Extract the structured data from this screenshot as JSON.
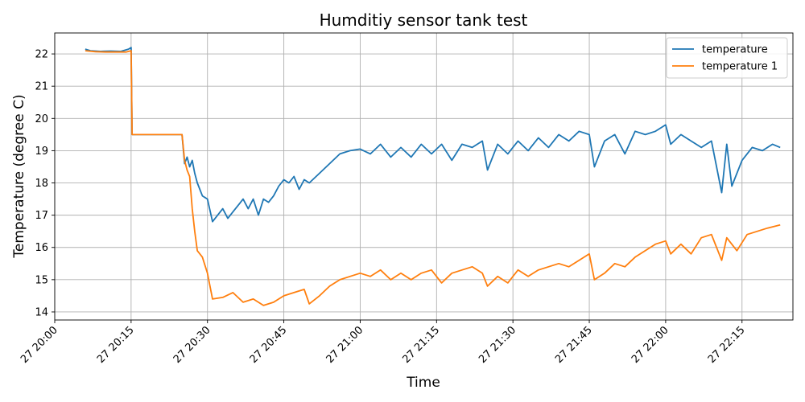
{
  "chart_data": {
    "type": "line",
    "title": "Humditiy sensor tank test",
    "xlabel": "Time",
    "ylabel": "Temperature (degree C)",
    "x_unit": "time (HH:MM)",
    "xlim": [
      "20:00",
      "22:25"
    ],
    "ylim": [
      13.75,
      22.65
    ],
    "x_ticks": [
      "20:00",
      "20:15",
      "20:30",
      "20:45",
      "21:00",
      "21:15",
      "21:30",
      "21:45",
      "22:00",
      "22:15"
    ],
    "x_tick_labels": [
      "27 20:00",
      "27 20:15",
      "27 20:30",
      "27 20:45",
      "27 21:00",
      "27 21:15",
      "27 21:30",
      "27 21:45",
      "27 22:00",
      "27 22:15"
    ],
    "y_ticks": [
      14,
      15,
      16,
      17,
      18,
      19,
      20,
      21,
      22
    ],
    "y_tick_labels": [
      "14",
      "15",
      "16",
      "17",
      "18",
      "19",
      "20",
      "21",
      "22"
    ],
    "grid": true,
    "legend_position": "top-right",
    "series": [
      {
        "name": "temperature",
        "color": "#1f77b4",
        "points": [
          [
            "20:06",
            22.15
          ],
          [
            "20:07",
            22.1
          ],
          [
            "20:09",
            22.08
          ],
          [
            "20:11",
            22.09
          ],
          [
            "20:13",
            22.08
          ],
          [
            "20:14.5",
            22.15
          ],
          [
            "20:15",
            22.2
          ],
          [
            "20:15.2",
            19.5
          ],
          [
            "20:18",
            19.5
          ],
          [
            "20:21",
            19.5
          ],
          [
            "20:24",
            19.5
          ],
          [
            "20:25",
            19.5
          ],
          [
            "20:25.5",
            18.6
          ],
          [
            "20:26",
            18.8
          ],
          [
            "20:26.5",
            18.5
          ],
          [
            "20:27",
            18.7
          ],
          [
            "20:27.5",
            18.3
          ],
          [
            "20:28",
            18.0
          ],
          [
            "20:29",
            17.6
          ],
          [
            "20:30",
            17.5
          ],
          [
            "20:31",
            16.8
          ],
          [
            "20:32",
            17.0
          ],
          [
            "20:33",
            17.2
          ],
          [
            "20:34",
            16.9
          ],
          [
            "20:35",
            17.1
          ],
          [
            "20:36",
            17.3
          ],
          [
            "20:37",
            17.5
          ],
          [
            "20:38",
            17.2
          ],
          [
            "20:39",
            17.5
          ],
          [
            "20:40",
            17.0
          ],
          [
            "20:41",
            17.5
          ],
          [
            "20:42",
            17.4
          ],
          [
            "20:43",
            17.6
          ],
          [
            "20:44",
            17.9
          ],
          [
            "20:45",
            18.1
          ],
          [
            "20:46",
            18.0
          ],
          [
            "20:47",
            18.2
          ],
          [
            "20:48",
            17.8
          ],
          [
            "20:49",
            18.1
          ],
          [
            "20:50",
            18.0
          ],
          [
            "20:52",
            18.3
          ],
          [
            "20:54",
            18.6
          ],
          [
            "20:56",
            18.9
          ],
          [
            "20:58",
            19.0
          ],
          [
            "21:00",
            19.05
          ],
          [
            "21:02",
            18.9
          ],
          [
            "21:04",
            19.2
          ],
          [
            "21:06",
            18.8
          ],
          [
            "21:08",
            19.1
          ],
          [
            "21:10",
            18.8
          ],
          [
            "21:12",
            19.2
          ],
          [
            "21:14",
            18.9
          ],
          [
            "21:16",
            19.2
          ],
          [
            "21:18",
            18.7
          ],
          [
            "21:20",
            19.2
          ],
          [
            "21:22",
            19.1
          ],
          [
            "21:24",
            19.3
          ],
          [
            "21:25",
            18.4
          ],
          [
            "21:27",
            19.2
          ],
          [
            "21:29",
            18.9
          ],
          [
            "21:31",
            19.3
          ],
          [
            "21:33",
            19.0
          ],
          [
            "21:35",
            19.4
          ],
          [
            "21:37",
            19.1
          ],
          [
            "21:39",
            19.5
          ],
          [
            "21:41",
            19.3
          ],
          [
            "21:43",
            19.6
          ],
          [
            "21:45",
            19.5
          ],
          [
            "21:46",
            18.5
          ],
          [
            "21:48",
            19.3
          ],
          [
            "21:50",
            19.5
          ],
          [
            "21:52",
            18.9
          ],
          [
            "21:54",
            19.6
          ],
          [
            "21:56",
            19.5
          ],
          [
            "21:58",
            19.6
          ],
          [
            "22:00",
            19.8
          ],
          [
            "22:01",
            19.2
          ],
          [
            "22:03",
            19.5
          ],
          [
            "22:05",
            19.3
          ],
          [
            "22:07",
            19.1
          ],
          [
            "22:09",
            19.3
          ],
          [
            "22:11",
            17.7
          ],
          [
            "22:12",
            19.2
          ],
          [
            "22:13",
            17.9
          ],
          [
            "22:15",
            18.7
          ],
          [
            "22:17",
            19.1
          ],
          [
            "22:19",
            19.0
          ],
          [
            "22:21",
            19.2
          ],
          [
            "22:22.5",
            19.1
          ]
        ]
      },
      {
        "name": "temperature 1",
        "color": "#ff7f0e",
        "points": [
          [
            "20:06",
            22.1
          ],
          [
            "20:08",
            22.07
          ],
          [
            "20:10",
            22.06
          ],
          [
            "20:12",
            22.06
          ],
          [
            "20:14",
            22.06
          ],
          [
            "20:15",
            22.1
          ],
          [
            "20:15.2",
            19.5
          ],
          [
            "20:18",
            19.5
          ],
          [
            "20:21",
            19.5
          ],
          [
            "20:24",
            19.5
          ],
          [
            "20:25",
            19.5
          ],
          [
            "20:25.5",
            18.7
          ],
          [
            "20:26",
            18.4
          ],
          [
            "20:26.5",
            18.2
          ],
          [
            "20:27",
            17.2
          ],
          [
            "20:27.5",
            16.5
          ],
          [
            "20:28",
            15.9
          ],
          [
            "20:29",
            15.7
          ],
          [
            "20:30",
            15.2
          ],
          [
            "20:31",
            14.4
          ],
          [
            "20:33",
            14.45
          ],
          [
            "20:35",
            14.6
          ],
          [
            "20:37",
            14.3
          ],
          [
            "20:39",
            14.4
          ],
          [
            "20:41",
            14.2
          ],
          [
            "20:43",
            14.3
          ],
          [
            "20:45",
            14.5
          ],
          [
            "20:47",
            14.6
          ],
          [
            "20:49",
            14.7
          ],
          [
            "20:50",
            14.25
          ],
          [
            "20:52",
            14.5
          ],
          [
            "20:54",
            14.8
          ],
          [
            "20:56",
            15.0
          ],
          [
            "20:58",
            15.1
          ],
          [
            "21:00",
            15.2
          ],
          [
            "21:02",
            15.1
          ],
          [
            "21:04",
            15.3
          ],
          [
            "21:06",
            15.0
          ],
          [
            "21:08",
            15.2
          ],
          [
            "21:10",
            15.0
          ],
          [
            "21:12",
            15.2
          ],
          [
            "21:14",
            15.3
          ],
          [
            "21:16",
            14.9
          ],
          [
            "21:18",
            15.2
          ],
          [
            "21:20",
            15.3
          ],
          [
            "21:22",
            15.4
          ],
          [
            "21:24",
            15.2
          ],
          [
            "21:25",
            14.8
          ],
          [
            "21:27",
            15.1
          ],
          [
            "21:29",
            14.9
          ],
          [
            "21:31",
            15.3
          ],
          [
            "21:33",
            15.1
          ],
          [
            "21:35",
            15.3
          ],
          [
            "21:37",
            15.4
          ],
          [
            "21:39",
            15.5
          ],
          [
            "21:41",
            15.4
          ],
          [
            "21:43",
            15.6
          ],
          [
            "21:45",
            15.8
          ],
          [
            "21:46",
            15.0
          ],
          [
            "21:48",
            15.2
          ],
          [
            "21:50",
            15.5
          ],
          [
            "21:52",
            15.4
          ],
          [
            "21:54",
            15.7
          ],
          [
            "21:56",
            15.9
          ],
          [
            "21:58",
            16.1
          ],
          [
            "22:00",
            16.2
          ],
          [
            "22:01",
            15.8
          ],
          [
            "22:03",
            16.1
          ],
          [
            "22:05",
            15.8
          ],
          [
            "22:07",
            16.3
          ],
          [
            "22:09",
            16.4
          ],
          [
            "22:11",
            15.6
          ],
          [
            "22:12",
            16.3
          ],
          [
            "22:14",
            15.9
          ],
          [
            "22:16",
            16.4
          ],
          [
            "22:18",
            16.5
          ],
          [
            "22:20",
            16.6
          ],
          [
            "22:22.5",
            16.7
          ]
        ]
      }
    ]
  }
}
